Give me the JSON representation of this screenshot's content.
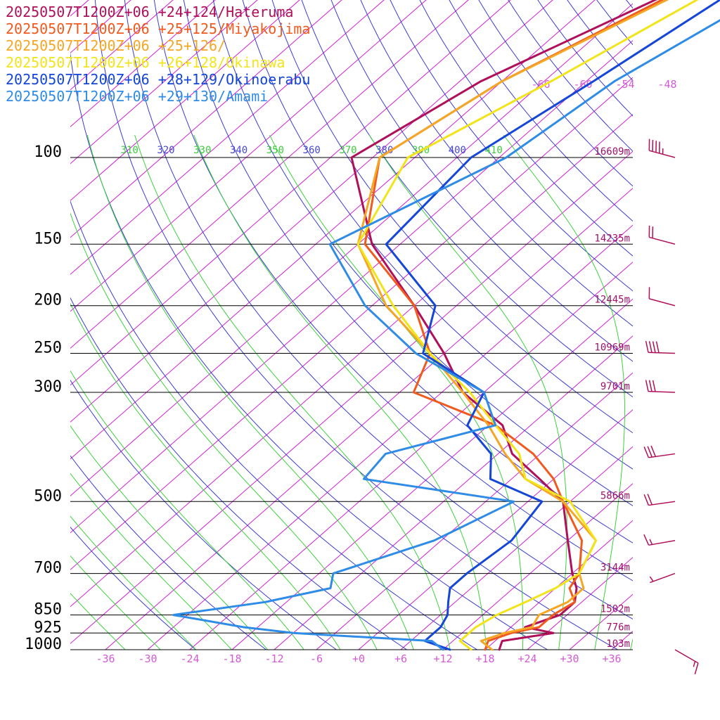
{
  "legend": [
    {
      "label": "20250507T1200Z+06 +24+124/Hateruma",
      "color": "#b0105a"
    },
    {
      "label": "20250507T1200Z+06 +25+125/Miyakojima",
      "color": "#f05a1e"
    },
    {
      "label": "20250507T1200Z+06 +25+126/",
      "color": "#f5a623"
    },
    {
      "label": "20250507T1200Z+06 +26+128/Okinawa",
      "color": "#f2e41a"
    },
    {
      "label": "20250507T1200Z+06 +28+129/Okinoerabu",
      "color": "#1446d8"
    },
    {
      "label": "20250507T1200Z+06 +29+130/Amami",
      "color": "#2f8ce6"
    }
  ],
  "chart_data": {
    "type": "line",
    "chart_kind": "skew-T log-p sounding",
    "pressure_levels": [
      {
        "p": 100,
        "label": "100",
        "height": "16609m"
      },
      {
        "p": 150,
        "label": "150",
        "height": "14235m"
      },
      {
        "p": 200,
        "label": "200",
        "height": "12445m"
      },
      {
        "p": 250,
        "label": "250",
        "height": "10969m"
      },
      {
        "p": 300,
        "label": "300",
        "height": "9701m"
      },
      {
        "p": 500,
        "label": "500",
        "height": "5866m"
      },
      {
        "p": 700,
        "label": "700",
        "height": "3144m"
      },
      {
        "p": 850,
        "label": "850",
        "height": "1502m"
      },
      {
        "p": 925,
        "label": "925",
        "height": "776m"
      },
      {
        "p": 1000,
        "label": "1000",
        "height": "103m"
      }
    ],
    "temperature_ticks": [
      "-36",
      "-30",
      "-24",
      "-18",
      "-12",
      "-6",
      "+0",
      "+6",
      "+12",
      "+18",
      "+24",
      "+30",
      "+36"
    ],
    "temperature_tick_values": [
      -36,
      -30,
      -24,
      -18,
      -12,
      -6,
      0,
      6,
      12,
      18,
      24,
      30,
      36
    ],
    "upper_temperature_labels": [
      "-66",
      "-60",
      "-54",
      "-48"
    ],
    "upper_temperature_values": [
      -66,
      -60,
      -54,
      -48
    ],
    "theta_labels": [
      "310",
      "320",
      "330",
      "340",
      "350",
      "360",
      "370",
      "380",
      "390",
      "400",
      "410"
    ],
    "theta_values": [
      310,
      320,
      330,
      340,
      350,
      360,
      370,
      380,
      390,
      400,
      410
    ],
    "theta_label_colors": [
      "#3ccc3c",
      "#4646d8",
      "#3ccc3c",
      "#4646d8",
      "#3ccc3c",
      "#4646d8",
      "#3ccc3c",
      "#4646d8",
      "#3ccc3c",
      "#4646d8",
      "#3ccc3c"
    ],
    "xlim": [
      -40,
      40
    ],
    "ylim_hPa": [
      1000,
      100
    ],
    "pressure_axis": "log",
    "skew_per_decade_C": 80,
    "colors": {
      "isotherm": "#d21ad2",
      "dry_adiabat": "#3c3cd2",
      "moist_adiabat": "#3cd23c",
      "isobar": "#000000",
      "height_label": "#a0106a",
      "temp_label": "#d45ad4"
    },
    "series": [
      {
        "name": "20250507T1200Z+06 +24+124/Hateruma",
        "color": "#b0105a",
        "points": [
          [
            1000,
            20
          ],
          [
            960,
            19
          ],
          [
            925,
            25
          ],
          [
            900,
            20
          ],
          [
            850,
            23
          ],
          [
            800,
            23
          ],
          [
            750,
            21
          ],
          [
            700,
            18
          ],
          [
            600,
            12
          ],
          [
            500,
            5
          ],
          [
            450,
            -2
          ],
          [
            400,
            -10
          ],
          [
            350,
            -16
          ],
          [
            300,
            -27
          ],
          [
            250,
            -36
          ],
          [
            200,
            -48
          ],
          [
            150,
            -64
          ],
          [
            100,
            -81
          ],
          [
            70,
            -75
          ],
          [
            40,
            -58
          ],
          [
            30,
            -52
          ]
        ]
      },
      {
        "name": "20250507T1200Z+06 +25+125/Miyakojima",
        "color": "#f05a1e",
        "points": [
          [
            1000,
            18
          ],
          [
            960,
            17
          ],
          [
            925,
            19
          ],
          [
            900,
            22
          ],
          [
            850,
            22
          ],
          [
            800,
            23
          ],
          [
            750,
            20
          ],
          [
            700,
            19
          ],
          [
            600,
            14
          ],
          [
            500,
            5
          ],
          [
            450,
            0
          ],
          [
            400,
            -7
          ],
          [
            350,
            -17
          ],
          [
            300,
            -34
          ],
          [
            250,
            -38
          ],
          [
            200,
            -48
          ],
          [
            150,
            -65
          ],
          [
            100,
            -77
          ],
          [
            70,
            -72
          ],
          [
            40,
            -58
          ],
          [
            30,
            -51
          ]
        ]
      },
      {
        "name": "20250507T1200Z+06 +25+126/",
        "color": "#f5a623",
        "points": [
          [
            1000,
            19
          ],
          [
            960,
            16
          ],
          [
            925,
            18
          ],
          [
            900,
            21
          ],
          [
            850,
            20
          ],
          [
            800,
            22
          ],
          [
            750,
            22
          ],
          [
            700,
            19
          ],
          [
            600,
            16
          ],
          [
            500,
            5
          ],
          [
            450,
            -4
          ],
          [
            400,
            -11
          ],
          [
            350,
            -18
          ],
          [
            300,
            -27
          ],
          [
            250,
            -38
          ],
          [
            200,
            -52
          ],
          [
            150,
            -66
          ],
          [
            100,
            -77
          ],
          [
            70,
            -72
          ],
          [
            40,
            -57
          ],
          [
            30,
            -50
          ]
        ]
      },
      {
        "name": "20250507T1200Z+06 +26+128/Okinawa",
        "color": "#f2e41a",
        "points": [
          [
            1000,
            16
          ],
          [
            960,
            13
          ],
          [
            925,
            13
          ],
          [
            900,
            13
          ],
          [
            850,
            14
          ],
          [
            800,
            16
          ],
          [
            750,
            18
          ],
          [
            700,
            19
          ],
          [
            600,
            16
          ],
          [
            500,
            6
          ],
          [
            450,
            -4
          ],
          [
            400,
            -9
          ],
          [
            350,
            -17
          ],
          [
            300,
            -26
          ],
          [
            250,
            -38
          ],
          [
            200,
            -51
          ],
          [
            150,
            -66
          ],
          [
            100,
            -73
          ],
          [
            70,
            -65
          ],
          [
            40,
            -54
          ],
          [
            30,
            -49
          ]
        ]
      },
      {
        "name": "20250507T1200Z+06 +28+129/Okinoerabu",
        "color": "#1446d8",
        "points": [
          [
            1000,
            13
          ],
          [
            960,
            8
          ],
          [
            925,
            8
          ],
          [
            900,
            8
          ],
          [
            850,
            7
          ],
          [
            800,
            5
          ],
          [
            750,
            3
          ],
          [
            700,
            3
          ],
          [
            600,
            4
          ],
          [
            500,
            2
          ],
          [
            450,
            -9
          ],
          [
            400,
            -13
          ],
          [
            350,
            -21
          ],
          [
            300,
            -24
          ],
          [
            250,
            -39
          ],
          [
            200,
            -45
          ],
          [
            150,
            -62
          ],
          [
            100,
            -64
          ],
          [
            70,
            -59
          ],
          [
            40,
            -52
          ],
          [
            30,
            -46
          ]
        ]
      },
      {
        "name": "20250507T1200Z+06 +29+130/Amami",
        "color": "#2f8ce6",
        "points": [
          [
            1000,
            12
          ],
          [
            960,
            9
          ],
          [
            925,
            -12
          ],
          [
            900,
            -20
          ],
          [
            850,
            -32
          ],
          [
            800,
            -21
          ],
          [
            750,
            -14
          ],
          [
            700,
            -16
          ],
          [
            600,
            -7
          ],
          [
            500,
            -2
          ],
          [
            450,
            -27
          ],
          [
            400,
            -28
          ],
          [
            350,
            -17
          ],
          [
            300,
            -24
          ],
          [
            250,
            -40
          ],
          [
            200,
            -55
          ],
          [
            150,
            -70
          ],
          [
            100,
            -59
          ],
          [
            70,
            -56
          ],
          [
            40,
            -46
          ],
          [
            30,
            -45
          ]
        ]
      }
    ],
    "wind_barbs": [
      {
        "p": 30,
        "spd": 5,
        "dir": 240,
        "color": "#b0105a"
      },
      {
        "p": 40,
        "spd": 5,
        "dir": 240,
        "color": "#b0105a"
      },
      {
        "p": 100,
        "spd": 45,
        "dir": 285,
        "color": "#b0105a"
      },
      {
        "p": 150,
        "spd": 20,
        "dir": 285,
        "color": "#b0105a"
      },
      {
        "p": 200,
        "spd": 10,
        "dir": 285,
        "color": "#b0105a"
      },
      {
        "p": 250,
        "spd": 40,
        "dir": 272,
        "color": "#b0105a"
      },
      {
        "p": 300,
        "spd": 30,
        "dir": 272,
        "color": "#b0105a"
      },
      {
        "p": 400,
        "spd": 30,
        "dir": 262,
        "color": "#b0105a"
      },
      {
        "p": 500,
        "spd": 20,
        "dir": 262,
        "color": "#b0105a"
      },
      {
        "p": 600,
        "spd": 15,
        "dir": 260,
        "color": "#b0105a"
      },
      {
        "p": 700,
        "spd": 5,
        "dir": 250,
        "color": "#b0105a"
      },
      {
        "p": 1000,
        "spd": 15,
        "dir": 120,
        "color": "#b0105a"
      }
    ]
  }
}
